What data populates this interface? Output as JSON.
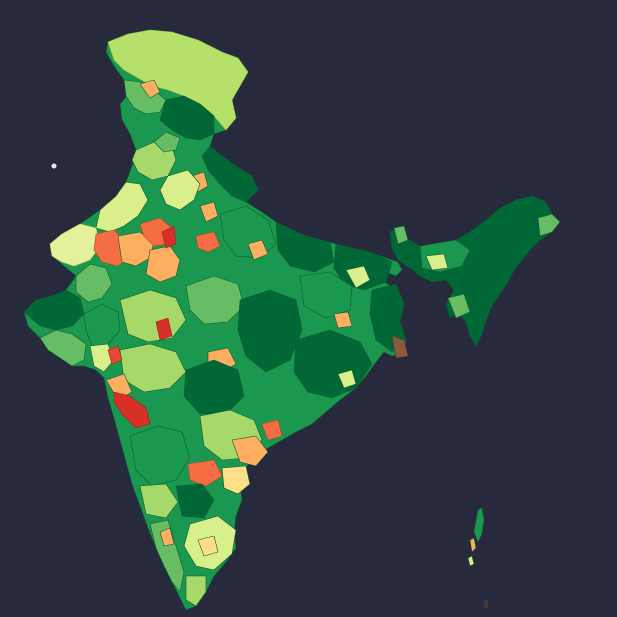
{
  "map": {
    "background": "#272a3d",
    "region": "India",
    "palette": [
      "#006837",
      "#1a9850",
      "#66bd63",
      "#a6d96a",
      "#d9ef8b",
      "#fee08b",
      "#fdae61",
      "#f46d43",
      "#d73027"
    ],
    "selection_marker": {
      "color": "#e8e8f0"
    }
  }
}
